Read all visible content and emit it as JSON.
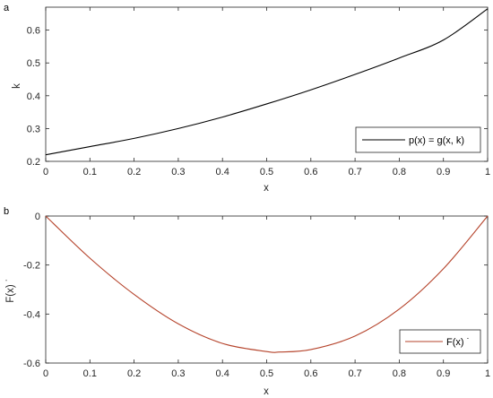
{
  "chart_data": [
    {
      "type": "line",
      "panel_label": "a",
      "xlabel": "x",
      "ylabel": "k",
      "xlim": [
        0,
        1
      ],
      "ylim": [
        0.2,
        0.67
      ],
      "xticks": [
        "0",
        "0.1",
        "0.2",
        "0.3",
        "0.4",
        "0.5",
        "0.6",
        "0.7",
        "0.8",
        "0.9",
        "1"
      ],
      "yticks": [
        "0.2",
        "0.3",
        "0.4",
        "0.5",
        "0.6"
      ],
      "ytick_values": [
        0.2,
        0.3,
        0.4,
        0.5,
        0.6
      ],
      "grid": false,
      "legend_placement": "bottom-right",
      "series": [
        {
          "name": "p(x) = g(x, k)",
          "color": "#000000",
          "x": [
            0,
            0.1,
            0.2,
            0.3,
            0.4,
            0.5,
            0.6,
            0.7,
            0.8,
            0.9,
            1.0
          ],
          "y": [
            0.22,
            0.245,
            0.27,
            0.3,
            0.335,
            0.375,
            0.418,
            0.465,
            0.515,
            0.57,
            0.665
          ]
        }
      ]
    },
    {
      "type": "line",
      "panel_label": "b",
      "xlabel": "x",
      "ylabel": "F(x) ˙",
      "xlim": [
        0,
        1
      ],
      "ylim": [
        -0.6,
        0
      ],
      "xticks": [
        "0",
        "0.1",
        "0.2",
        "0.3",
        "0.4",
        "0.5",
        "0.6",
        "0.7",
        "0.8",
        "0.9",
        "1"
      ],
      "yticks": [
        "-0.6",
        "-0.4",
        "-0.2",
        "0"
      ],
      "ytick_values": [
        -0.6,
        -0.4,
        -0.2,
        0
      ],
      "grid": false,
      "legend_placement": "bottom-right",
      "series": [
        {
          "name": "F(x) ˙",
          "color": "#b5432b",
          "x": [
            0,
            0.1,
            0.2,
            0.3,
            0.4,
            0.5,
            0.53,
            0.6,
            0.7,
            0.8,
            0.9,
            1.0
          ],
          "y": [
            0,
            -0.172,
            -0.32,
            -0.44,
            -0.52,
            -0.553,
            -0.555,
            -0.545,
            -0.49,
            -0.38,
            -0.215,
            0
          ]
        }
      ]
    }
  ]
}
